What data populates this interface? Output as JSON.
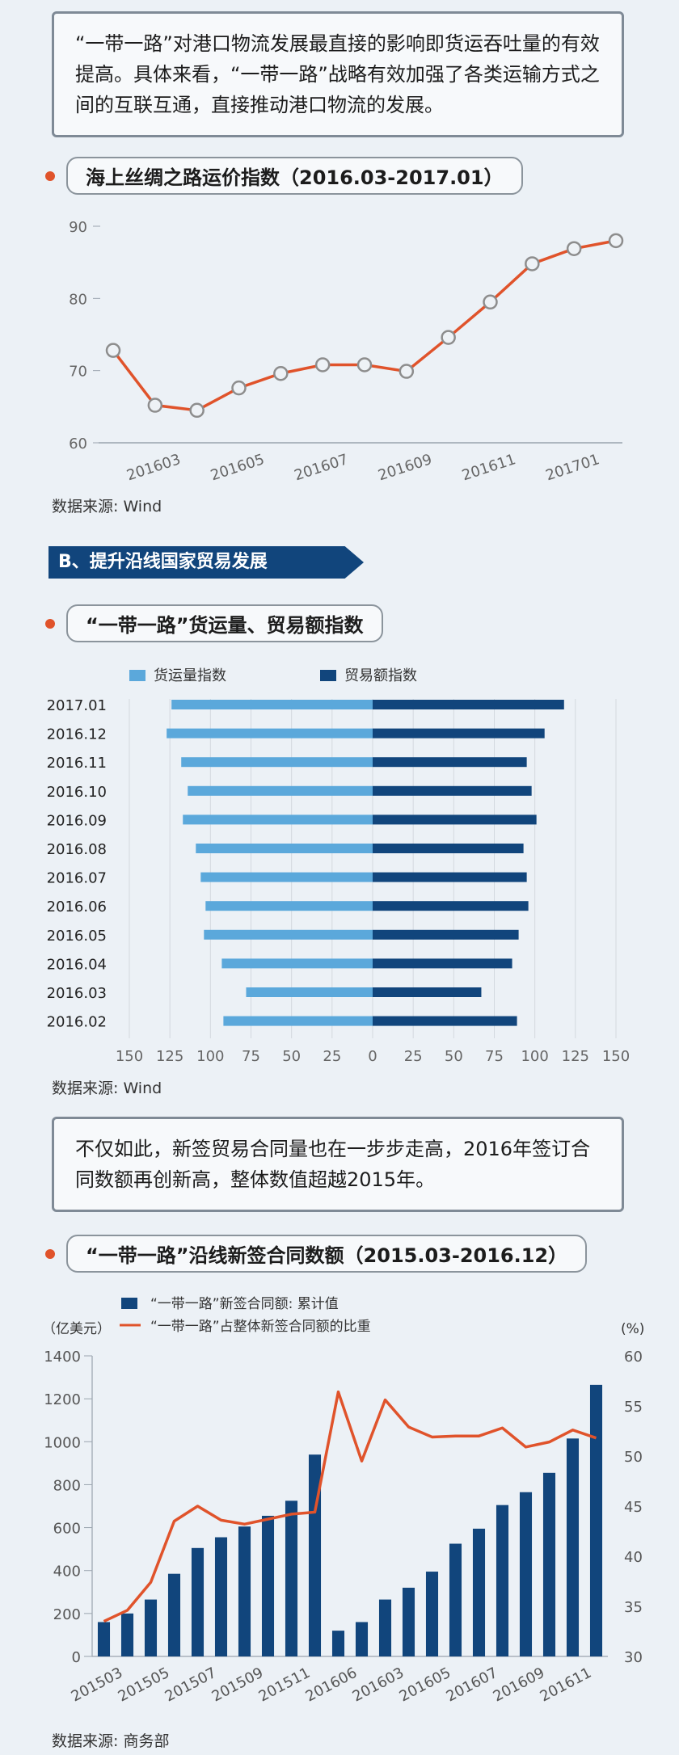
{
  "intro": {
    "text": "“一带一路”对港口物流发展最直接的影响即货运吞吐量的有效提高。具体来看，“一带一路”战略有效加强了各类运输方式之间的互联互通，直接推动港口物流的发展。"
  },
  "section_b": {
    "label": "B、提升沿线国家贸易发展"
  },
  "mid": {
    "text": "不仅如此，新签贸易合同量也在一步步走高，2016年签订合同数额再创新高，整体数值超越2015年。"
  },
  "chart_data": [
    {
      "type": "line",
      "title": "海上丝绸之路运价指数（2016.03-2017.01）",
      "source": "数据来源: Wind",
      "x_tick_labels": [
        "201603",
        "201605",
        "201607",
        "201609",
        "201611",
        "201701"
      ],
      "y_ticks": [
        "60",
        "70",
        "80",
        "90"
      ],
      "ylim": [
        60,
        90
      ],
      "values": [
        72.8,
        65.2,
        64.5,
        67.6,
        69.6,
        70.8,
        70.8,
        69.9,
        74.6,
        79.5,
        84.8,
        86.9,
        88.0
      ],
      "line_color": "#e0532b"
    },
    {
      "type": "bar",
      "orientation": "horizontal-diverging",
      "title": "“一带一路”货运量、贸易额指数",
      "source": "数据来源: Wind",
      "categories": [
        "2017.01",
        "2016.12",
        "2016.11",
        "2016.10",
        "2016.09",
        "2016.08",
        "2016.07",
        "2016.06",
        "2016.05",
        "2016.04",
        "2016.03",
        "2016.02"
      ],
      "series": [
        {
          "name": "货运量指数",
          "color": "#5ba8db",
          "values": [
            124,
            127,
            118,
            114,
            117,
            109,
            106,
            103,
            104,
            93,
            78,
            92
          ]
        },
        {
          "name": "贸易额指数",
          "color": "#11457c",
          "values": [
            118,
            106,
            95,
            98,
            101,
            93,
            95,
            96,
            90,
            86,
            67,
            89
          ]
        }
      ],
      "x_tick_labels": [
        "150",
        "125",
        "100",
        "75",
        "50",
        "25",
        "0",
        "25",
        "50",
        "75",
        "100",
        "125",
        "150"
      ],
      "xlim": [
        -150,
        150
      ]
    },
    {
      "type": "bar+line",
      "title": "“一带一路”沿线新签合同数额（2015.03-2016.12）",
      "source": "数据来源: 商务部",
      "left_unit": "（亿美元）",
      "right_unit": "(%)",
      "x_tick_labels": [
        "201503",
        "201505",
        "201507",
        "201509",
        "201511",
        "201606",
        "201603",
        "201605",
        "201607",
        "201609",
        "201611"
      ],
      "left_ticks": [
        "0",
        "200",
        "400",
        "600",
        "800",
        "1000",
        "1200",
        "1400"
      ],
      "right_ticks": [
        "30",
        "35",
        "40",
        "45",
        "50",
        "55",
        "60"
      ],
      "left_ylim": [
        0,
        1400
      ],
      "right_ylim": [
        30,
        60
      ],
      "series": [
        {
          "name": "“一带一路”新签合同额: 累计值",
          "type": "bar",
          "color": "#11457c",
          "values": [
            160,
            200,
            265,
            385,
            505,
            555,
            605,
            655,
            725,
            940,
            120,
            160,
            265,
            320,
            395,
            525,
            595,
            705,
            765,
            855,
            1015,
            1265
          ]
        },
        {
          "name": "“一带一路”占整体新签合同额的比重",
          "type": "line",
          "color": "#e0532b",
          "values": [
            33.5,
            34.6,
            37.4,
            43.5,
            45.0,
            43.6,
            43.2,
            43.7,
            44.2,
            44.4,
            56.4,
            49.5,
            55.6,
            52.9,
            51.9,
            52.0,
            52.0,
            52.8,
            50.9,
            51.4,
            52.6,
            51.8
          ]
        }
      ]
    }
  ]
}
